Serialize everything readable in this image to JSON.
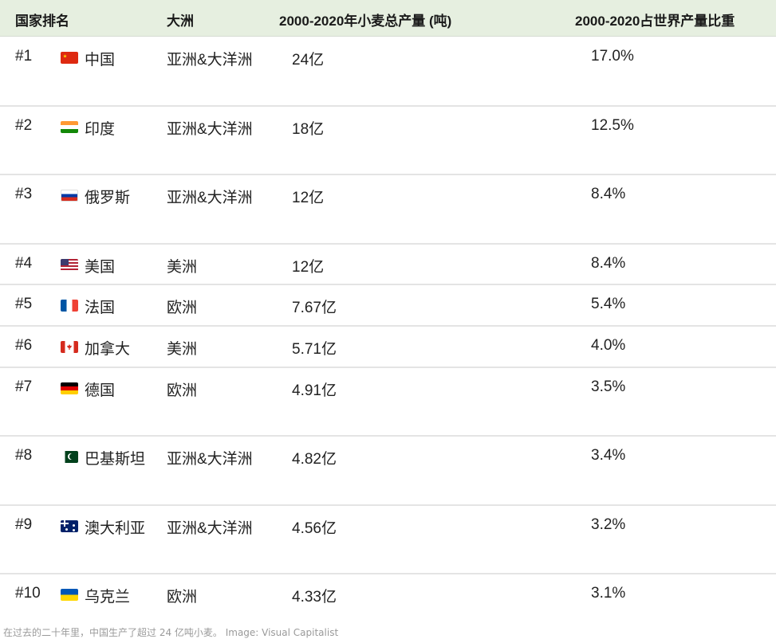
{
  "table": {
    "headers": {
      "rank": "国家排名",
      "continent": "大洲",
      "production": "2000-2020年小麦总产量 (吨)",
      "share": "2000-2020占世界产量比重"
    },
    "rows": [
      {
        "rank": "#1",
        "flag_icon": "china-flag-icon",
        "country": "中国",
        "continent": "亚洲&大洋洲",
        "production": "24亿",
        "share": "17.0%"
      },
      {
        "rank": "#2",
        "flag_icon": "india-flag-icon",
        "country": "印度",
        "continent": "亚洲&大洋洲",
        "production": "18亿",
        "share": "12.5%"
      },
      {
        "rank": "#3",
        "flag_icon": "russia-flag-icon",
        "country": "俄罗斯",
        "continent": "亚洲&大洋洲",
        "production": "12亿",
        "share": "8.4%"
      },
      {
        "rank": "#4",
        "flag_icon": "usa-flag-icon",
        "country": "美国",
        "continent": "美洲",
        "production": "12亿",
        "share": "8.4%"
      },
      {
        "rank": "#5",
        "flag_icon": "france-flag-icon",
        "country": "法国",
        "continent": "欧洲",
        "production": "7.67亿",
        "share": "5.4%"
      },
      {
        "rank": "#6",
        "flag_icon": "canada-flag-icon",
        "country": "加拿大",
        "continent": "美洲",
        "production": "5.71亿",
        "share": "4.0%"
      },
      {
        "rank": "#7",
        "flag_icon": "germany-flag-icon",
        "country": "德国",
        "continent": "欧洲",
        "production": "4.91亿",
        "share": "3.5%"
      },
      {
        "rank": "#8",
        "flag_icon": "pakistan-flag-icon",
        "country": "巴基斯坦",
        "continent": "亚洲&大洋洲",
        "production": "4.82亿",
        "share": "3.4%"
      },
      {
        "rank": "#9",
        "flag_icon": "australia-flag-icon",
        "country": "澳大利亚",
        "continent": "亚洲&大洋洲",
        "production": "4.56亿",
        "share": "3.2%"
      },
      {
        "rank": "#10",
        "flag_icon": "ukraine-flag-icon",
        "country": "乌克兰",
        "continent": "欧洲",
        "production": "4.33亿",
        "share": "3.1%"
      }
    ]
  },
  "caption": "在过去的二十年里，中国生产了超过 24 亿吨小麦。 Image: Visual Capitalist",
  "colors": {
    "header_bg": "#e6efe0",
    "row_border": "#e4e4e4",
    "caption": "#9a9a9a"
  }
}
